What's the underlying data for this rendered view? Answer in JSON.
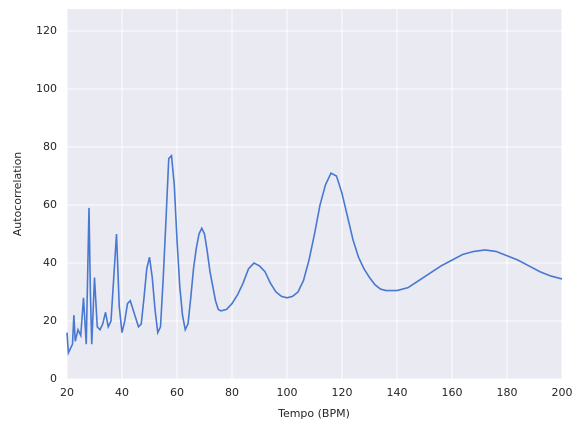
{
  "chart_data": {
    "type": "line",
    "x_label": "Tempo (BPM)",
    "y_label": "Autocorrelation",
    "x": [
      20,
      20.5,
      21,
      22,
      22.5,
      23,
      24,
      25,
      26,
      26.5,
      27,
      28,
      28.5,
      29,
      30,
      31,
      32,
      33,
      34,
      35,
      36,
      37,
      38,
      39,
      40,
      41,
      42,
      43,
      44,
      46,
      47,
      48,
      49,
      50,
      51,
      52,
      53,
      54,
      55,
      56,
      57,
      58,
      59,
      60,
      61,
      62,
      63,
      64,
      65,
      66,
      67,
      68,
      69,
      70,
      71,
      72,
      73,
      74,
      75,
      76,
      78,
      80,
      82,
      84,
      86,
      88,
      90,
      92,
      94,
      96,
      98,
      100,
      102,
      104,
      106,
      108,
      110,
      112,
      114,
      116,
      118,
      120,
      122,
      124,
      126,
      128,
      130,
      132,
      134,
      136,
      140,
      144,
      148,
      152,
      156,
      160,
      164,
      168,
      172,
      176,
      180,
      184,
      188,
      192,
      196,
      200
    ],
    "series": [
      {
        "color": "#4878d0",
        "values": [
          16,
          9,
          10,
          12,
          22,
          13,
          17,
          15,
          28,
          20,
          12,
          59,
          30,
          12,
          35,
          18,
          17,
          19,
          23,
          18,
          20,
          35,
          50,
          25,
          16,
          20,
          26,
          27,
          24,
          18,
          19,
          28,
          38,
          42,
          35,
          24,
          16,
          18,
          35,
          55,
          76,
          77,
          67,
          48,
          32,
          22,
          17,
          19,
          28,
          38,
          45,
          50,
          52,
          50,
          44,
          37,
          32,
          27,
          24,
          23.5,
          24,
          26,
          29,
          33,
          38,
          40,
          39,
          37,
          33,
          30,
          28.5,
          28,
          28.5,
          30,
          34,
          41,
          50,
          60,
          67,
          71,
          70,
          64,
          56,
          48,
          42,
          38,
          35,
          32.5,
          31,
          30.5,
          30.5,
          31.5,
          34,
          36.5,
          39,
          41,
          43,
          44,
          44.5,
          44,
          42.5,
          41,
          39,
          37,
          35.5,
          34.5
        ]
      }
    ],
    "xlim": [
      20,
      200
    ],
    "ylim": [
      0,
      127.6
    ],
    "xticks": [
      20,
      40,
      60,
      80,
      100,
      120,
      140,
      160,
      180,
      200
    ],
    "yticks": [
      0,
      20,
      40,
      60,
      80,
      100,
      120
    ],
    "grid": true
  }
}
